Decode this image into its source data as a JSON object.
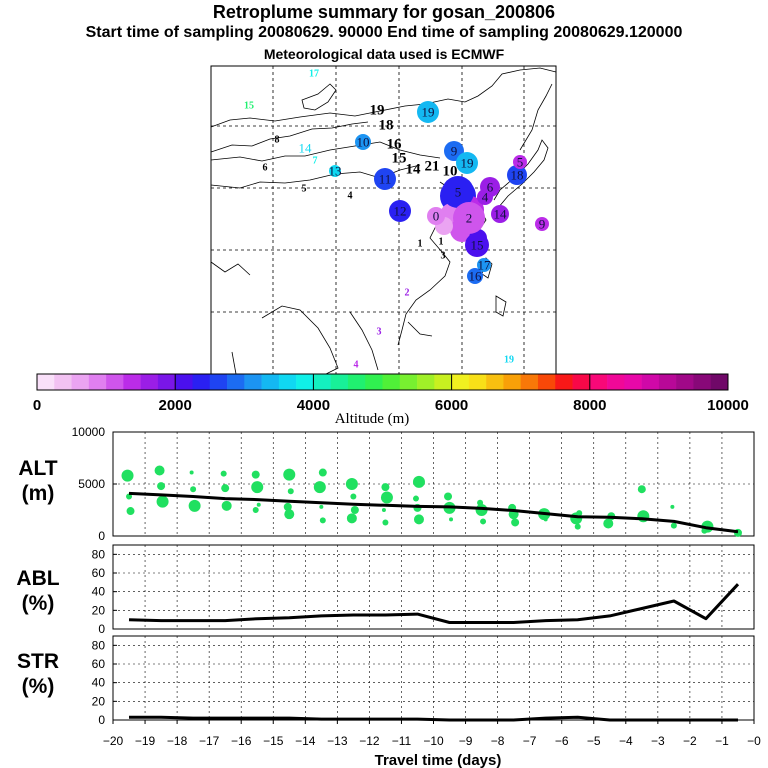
{
  "header": {
    "title": "Retroplume summary for gosan_200806",
    "times": "Start time of sampling 20080629. 90000     End time of sampling 20080629.120000",
    "met": "Meteorological data used is ECMWF"
  },
  "colorbar": {
    "tick_labels": [
      "0",
      "2000",
      "4000",
      "6000",
      "8000",
      "10000"
    ],
    "label": "Altitude (m)",
    "colors": [
      "#f9e0f9",
      "#f2c2f2",
      "#eba4f2",
      "#e07ff0",
      "#cf55ec",
      "#bb2ce8",
      "#9b1ee6",
      "#7a16e8",
      "#4b10ee",
      "#2a20f2",
      "#1f44f2",
      "#1c6cf2",
      "#1c94f2",
      "#14b8f2",
      "#10d8f2",
      "#10f0e8",
      "#14f0c0",
      "#18f098",
      "#20f070",
      "#30f050",
      "#50f038",
      "#78f030",
      "#a0f028",
      "#c8f020",
      "#f0f020",
      "#f8e018",
      "#f8c010",
      "#f8a008",
      "#f87808",
      "#f84808",
      "#f81818",
      "#f80848",
      "#f80878",
      "#f00898",
      "#e808a8",
      "#d008a8",
      "#b80898",
      "#a00888",
      "#880878",
      "#700868"
    ]
  },
  "map_labels": [
    {
      "t": "17",
      "c": "#10f0e8"
    },
    {
      "t": "15",
      "c": "#20f070"
    },
    {
      "t": "19",
      "c": "#000000"
    },
    {
      "t": "19",
      "c": "#14b8f2"
    },
    {
      "t": "18",
      "c": "#000000"
    },
    {
      "t": "10",
      "c": "#1c94f2"
    },
    {
      "t": "8",
      "c": "#000000"
    },
    {
      "t": "14",
      "c": "#10d8f2"
    },
    {
      "t": "7",
      "c": "#10f0e8"
    },
    {
      "t": "16",
      "c": "#000000"
    },
    {
      "t": "15",
      "c": "#000000"
    },
    {
      "t": "9",
      "c": "#1c6cf2"
    },
    {
      "t": "19",
      "c": "#14b8f2"
    },
    {
      "t": "6",
      "c": "#000000"
    },
    {
      "t": "13",
      "c": "#10d8f2"
    },
    {
      "t": "14",
      "c": "#000000"
    },
    {
      "t": "21",
      "c": "#000000"
    },
    {
      "t": "10",
      "c": "#000000"
    },
    {
      "t": "11",
      "c": "#1f44f2"
    },
    {
      "t": "5",
      "c": "#000000"
    },
    {
      "t": "4",
      "c": "#000000"
    },
    {
      "t": "18",
      "c": "#1f44f2"
    },
    {
      "t": "5",
      "c": "#bb2ce8"
    },
    {
      "t": "5",
      "c": "#2a20f2"
    },
    {
      "t": "6",
      "c": "#9b1ee6"
    },
    {
      "t": "4",
      "c": "#9b1ee6"
    },
    {
      "t": "12",
      "c": "#2a20f2"
    },
    {
      "t": "0",
      "c": "#e07ff0"
    },
    {
      "t": "2",
      "c": "#cf55ec"
    },
    {
      "t": "14",
      "c": "#9b1ee6"
    },
    {
      "t": "9",
      "c": "#bb2ce8"
    },
    {
      "t": "1",
      "c": "#000000"
    },
    {
      "t": "1",
      "c": "#000000"
    },
    {
      "t": "3",
      "c": "#000000"
    },
    {
      "t": "15",
      "c": "#4b10ee"
    },
    {
      "t": "17",
      "c": "#1c94f2"
    },
    {
      "t": "16",
      "c": "#1c6cf2"
    },
    {
      "t": "2",
      "c": "#9b1ee6"
    },
    {
      "t": "3",
      "c": "#9b1ee6"
    },
    {
      "t": "4",
      "c": "#bb2ce8"
    },
    {
      "t": "19",
      "c": "#10d8f2"
    }
  ],
  "chart_data": [
    {
      "type": "scatter",
      "title": "ALT (m)",
      "ylabel": "ALT (m)",
      "ylim": [
        0,
        10000
      ],
      "yticks": [
        "0",
        "5000",
        "10000"
      ],
      "xlim": [
        -20,
        0
      ],
      "grid": true,
      "series": [
        {
          "name": "median altitude",
          "style": "line",
          "x": [
            -19.5,
            -18.5,
            -17.5,
            -16.5,
            -15.5,
            -14.5,
            -13.5,
            -12.5,
            -11.5,
            -10.5,
            -9.5,
            -8.5,
            -7.5,
            -6.5,
            -5.5,
            -4.5,
            -3.5,
            -2.5,
            -1.5,
            -0.5
          ],
          "y": [
            4100,
            3950,
            3800,
            3600,
            3500,
            3350,
            3200,
            3050,
            2950,
            2850,
            2800,
            2650,
            2450,
            2150,
            1850,
            1800,
            1650,
            1400,
            800,
            400
          ]
        },
        {
          "name": "cluster altitudes",
          "style": "points",
          "points": [
            [
              -19.5,
              5800
            ],
            [
              -19.5,
              3800
            ],
            [
              -19.5,
              2400
            ],
            [
              -18.5,
              6300
            ],
            [
              -18.5,
              4800
            ],
            [
              -18.5,
              3300
            ],
            [
              -17.5,
              6100
            ],
            [
              -17.5,
              4500
            ],
            [
              -17.5,
              2900
            ],
            [
              -16.5,
              6000
            ],
            [
              -16.5,
              4600
            ],
            [
              -16.5,
              2900
            ],
            [
              -15.5,
              5900
            ],
            [
              -15.5,
              4700
            ],
            [
              -15.5,
              3000
            ],
            [
              -15.5,
              2500
            ],
            [
              -14.5,
              5900
            ],
            [
              -14.5,
              4300
            ],
            [
              -14.5,
              2800
            ],
            [
              -14.5,
              2100
            ],
            [
              -13.5,
              6100
            ],
            [
              -13.5,
              4700
            ],
            [
              -13.5,
              2800
            ],
            [
              -13.5,
              1500
            ],
            [
              -12.5,
              5000
            ],
            [
              -12.5,
              3800
            ],
            [
              -12.5,
              2500
            ],
            [
              -12.5,
              1700
            ],
            [
              -11.5,
              4700
            ],
            [
              -11.5,
              3700
            ],
            [
              -11.5,
              2500
            ],
            [
              -11.5,
              1300
            ],
            [
              -10.5,
              5200
            ],
            [
              -10.5,
              3600
            ],
            [
              -10.5,
              2700
            ],
            [
              -10.5,
              1600
            ],
            [
              -9.5,
              3800
            ],
            [
              -9.5,
              2700
            ],
            [
              -9.5,
              1600
            ],
            [
              -8.5,
              3200
            ],
            [
              -8.5,
              2500
            ],
            [
              -8.5,
              1400
            ],
            [
              -7.5,
              2700
            ],
            [
              -7.5,
              2100
            ],
            [
              -7.5,
              1300
            ],
            [
              -6.5,
              2100
            ],
            [
              -6.5,
              1600
            ],
            [
              -5.5,
              2200
            ],
            [
              -5.5,
              1700
            ],
            [
              -5.5,
              900
            ],
            [
              -4.5,
              1900
            ],
            [
              -4.5,
              1200
            ],
            [
              -3.5,
              4500
            ],
            [
              -3.5,
              1900
            ],
            [
              -2.5,
              2800
            ],
            [
              -2.5,
              1000
            ],
            [
              -1.5,
              900
            ],
            [
              -1.5,
              500
            ],
            [
              -0.5,
              300
            ]
          ]
        }
      ]
    },
    {
      "type": "line",
      "title": "ABL (%)",
      "ylabel": "ABL (%)",
      "ylim": [
        0,
        90
      ],
      "yticks": [
        "0",
        "20",
        "40",
        "60",
        "80"
      ],
      "xlim": [
        -20,
        0
      ],
      "grid": true,
      "x": [
        -19.5,
        -18.5,
        -17.5,
        -16.5,
        -15.5,
        -14.5,
        -13.5,
        -12.5,
        -11.5,
        -10.5,
        -9.5,
        -8.5,
        -7.5,
        -6.5,
        -5.5,
        -4.5,
        -3.5,
        -2.5,
        -1.5,
        -0.5
      ],
      "values": [
        10,
        9,
        9,
        9,
        11,
        12,
        14,
        15,
        15,
        16,
        7,
        7,
        7,
        9,
        10,
        14,
        22,
        30,
        11,
        48
      ]
    },
    {
      "type": "line",
      "title": "STR (%)",
      "ylabel": "STR (%)",
      "ylim": [
        0,
        90
      ],
      "yticks": [
        "0",
        "20",
        "40",
        "60",
        "80"
      ],
      "xlim": [
        -20,
        0
      ],
      "grid": true,
      "x": [
        -19.5,
        -18.5,
        -17.5,
        -16.5,
        -15.5,
        -14.5,
        -13.5,
        -12.5,
        -11.5,
        -10.5,
        -9.5,
        -8.5,
        -7.5,
        -6.5,
        -5.5,
        -4.5,
        -3.5,
        -2.5,
        -1.5,
        -0.5
      ],
      "values": [
        3,
        3,
        2,
        2,
        2,
        2,
        1,
        1,
        1,
        1,
        0,
        0,
        0,
        2,
        3,
        0,
        0,
        0,
        0,
        0
      ]
    }
  ],
  "xaxis": {
    "label": "Travel time (days)",
    "tick_labels": [
      "−20",
      "−19",
      "−18",
      "−17",
      "−16",
      "−15",
      "−14",
      "−13",
      "−12",
      "−11",
      "−10",
      "−9",
      "−8",
      "−7",
      "−6",
      "−5",
      "−4",
      "−3",
      "−2",
      "−1",
      "−0"
    ]
  },
  "panel_labels": {
    "alt": [
      "ALT",
      "(m)"
    ],
    "abl": [
      "ABL",
      "(%)"
    ],
    "str": [
      "STR",
      "(%)"
    ]
  }
}
